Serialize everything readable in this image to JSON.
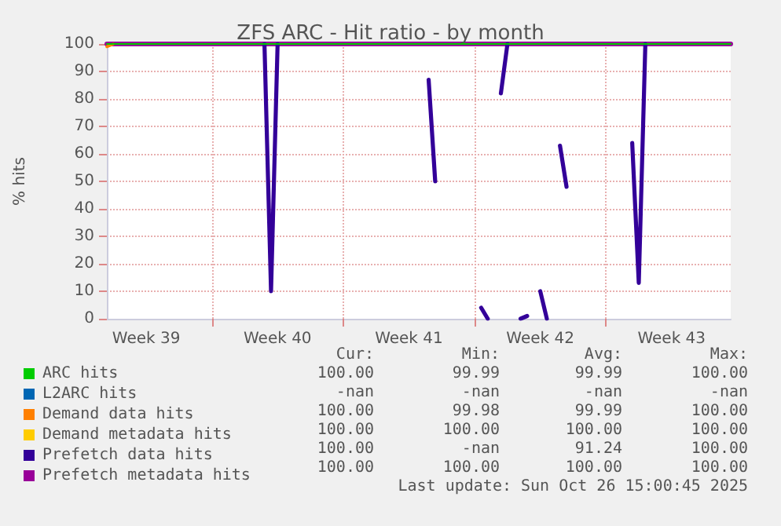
{
  "chart_data": {
    "type": "line",
    "title": "ZFS ARC - Hit ratio - by month",
    "ylabel": "% hits",
    "categories": [
      null,
      null,
      null,
      null,
      null,
      null,
      "Week 39",
      null,
      null,
      null,
      null,
      null,
      null,
      null,
      null,
      null,
      null,
      null,
      null,
      null,
      null,
      null,
      null,
      null,
      null,
      null,
      "Week 40",
      null,
      null,
      null,
      null,
      null,
      null,
      null,
      null,
      null,
      null,
      null,
      null,
      null,
      null,
      null,
      null,
      null,
      null,
      null,
      "Week 41",
      null,
      null,
      null,
      null,
      null,
      null,
      null,
      null,
      null,
      null,
      null,
      null,
      null,
      null,
      null,
      null,
      null,
      null,
      null,
      "Week 42",
      null,
      null,
      null,
      null,
      null,
      null,
      null,
      null,
      null,
      null,
      null,
      null,
      null,
      null,
      null,
      null,
      null,
      null,
      null,
      "Week 43",
      null,
      null,
      null,
      null,
      null,
      null,
      null,
      null,
      null
    ],
    "ylim": [
      0,
      100
    ],
    "yticks": [
      0,
      10,
      20,
      30,
      40,
      50,
      60,
      70,
      80,
      90,
      100
    ],
    "grid": true,
    "legend": "bottom left",
    "line_style": "solid",
    "series": [
      {
        "name": "ARC hits",
        "color": "#00cc00",
        "values": [
          100,
          100,
          100,
          100,
          100,
          100,
          100,
          100,
          100,
          100,
          100,
          100,
          100,
          100,
          100,
          100,
          100,
          100,
          100,
          100,
          100,
          100,
          100,
          100,
          100,
          100,
          100,
          100,
          100,
          100,
          100,
          100,
          100,
          100,
          100,
          100,
          100,
          100,
          100,
          100,
          100,
          100,
          100,
          100,
          100,
          100,
          100,
          100,
          100,
          100,
          100,
          100,
          100,
          100,
          100,
          100,
          100,
          100,
          100,
          100,
          100,
          100,
          100,
          100,
          100,
          100,
          100,
          100,
          100,
          100,
          100,
          100,
          100,
          100,
          100,
          100,
          100,
          100,
          100,
          100,
          100,
          100,
          100,
          100,
          100,
          100,
          100,
          100,
          100,
          100,
          100,
          100,
          100,
          100,
          100,
          100
        ]
      },
      {
        "name": "L2ARC hits",
        "color": "#0066b3",
        "values": [
          null,
          null,
          null,
          null,
          null,
          null,
          null,
          null,
          null,
          null,
          null,
          null,
          null,
          null,
          null,
          null,
          null,
          null,
          null,
          null,
          null,
          null,
          null,
          null,
          null,
          null,
          null,
          null,
          null,
          null,
          null,
          null,
          null,
          null,
          null,
          null,
          null,
          null,
          null,
          null,
          null,
          null,
          null,
          null,
          null,
          null,
          null,
          null,
          null,
          null,
          null,
          null,
          null,
          null,
          null,
          null,
          null,
          null,
          null,
          null,
          null,
          null,
          null,
          null,
          null,
          null,
          null,
          null,
          null,
          null,
          null,
          null,
          null,
          null,
          null,
          null,
          null,
          null,
          null,
          null,
          null,
          null,
          null,
          null,
          null,
          null,
          null,
          null,
          null,
          null,
          null,
          null,
          null,
          null,
          null,
          null
        ]
      },
      {
        "name": "Demand data hits",
        "color": "#ff8000",
        "values": [
          99,
          100,
          null,
          null,
          null,
          null,
          null,
          null,
          null,
          null,
          null,
          null,
          null,
          null,
          null,
          null,
          null,
          null,
          null,
          null,
          null,
          null,
          null,
          null,
          null,
          null,
          null,
          null,
          null,
          null,
          null,
          null,
          null,
          null,
          null,
          null,
          null,
          null,
          null,
          null,
          null,
          null,
          null,
          null,
          null,
          null,
          null,
          null,
          null,
          null,
          null,
          null,
          null,
          null,
          null,
          null,
          null,
          null,
          null,
          null,
          null,
          null,
          null,
          null,
          null,
          null,
          null,
          null,
          null,
          null,
          null,
          null,
          null,
          null,
          null,
          null,
          null,
          null,
          null,
          null,
          null,
          null,
          null,
          null,
          null,
          null,
          null,
          null,
          null,
          null,
          null,
          null,
          null,
          null,
          null,
          null
        ]
      },
      {
        "name": "Demand metadata hits",
        "color": "#ffcc00",
        "values": [
          null,
          null,
          null,
          null,
          null,
          null,
          null,
          null,
          null,
          null,
          null,
          null,
          null,
          null,
          null,
          null,
          null,
          null,
          null,
          null,
          null,
          null,
          null,
          null,
          null,
          null,
          null,
          null,
          null,
          null,
          null,
          null,
          null,
          null,
          null,
          null,
          null,
          null,
          null,
          null,
          null,
          null,
          null,
          null,
          null,
          null,
          null,
          null,
          null,
          null,
          null,
          null,
          null,
          null,
          null,
          null,
          null,
          null,
          null,
          null,
          null,
          null,
          null,
          null,
          null,
          null,
          null,
          null,
          null,
          null,
          null,
          null,
          null,
          null,
          null,
          null,
          null,
          null,
          null,
          null,
          null,
          null,
          null,
          null,
          null,
          null,
          null,
          null,
          null,
          null,
          null,
          null,
          null,
          null,
          null,
          null
        ]
      },
      {
        "name": "Prefetch data hits",
        "color": "#330099",
        "values": [
          null,
          null,
          null,
          null,
          null,
          null,
          null,
          null,
          null,
          null,
          null,
          null,
          null,
          null,
          null,
          null,
          null,
          null,
          null,
          null,
          null,
          null,
          null,
          null,
          100,
          10,
          100,
          null,
          null,
          null,
          null,
          null,
          null,
          null,
          null,
          null,
          null,
          null,
          null,
          null,
          null,
          null,
          null,
          null,
          null,
          null,
          null,
          null,
          null,
          87,
          50,
          null,
          null,
          null,
          null,
          null,
          null,
          4,
          0,
          null,
          82,
          100,
          null,
          0,
          1,
          null,
          10,
          0,
          null,
          63,
          48,
          null,
          null,
          null,
          null,
          null,
          null,
          null,
          null,
          null,
          64,
          13,
          100,
          null,
          null,
          null,
          null,
          null,
          null,
          null,
          null,
          null,
          null,
          null,
          null,
          null
        ]
      },
      {
        "name": "Prefetch metadata hits",
        "color": "#990099",
        "values": [
          100,
          100,
          100,
          100,
          100,
          100,
          100,
          100,
          100,
          100,
          100,
          100,
          100,
          100,
          100,
          100,
          100,
          100,
          100,
          100,
          100,
          100,
          100,
          100,
          100,
          100,
          100,
          100,
          100,
          100,
          100,
          100,
          100,
          100,
          100,
          100,
          100,
          100,
          100,
          100,
          100,
          100,
          100,
          100,
          100,
          100,
          100,
          100,
          100,
          100,
          100,
          100,
          100,
          100,
          100,
          100,
          100,
          100,
          100,
          100,
          100,
          100,
          100,
          100,
          100,
          100,
          100,
          100,
          100,
          100,
          100,
          100,
          100,
          100,
          100,
          100,
          100,
          100,
          100,
          100,
          100,
          100,
          100,
          100,
          100,
          100,
          100,
          100,
          100,
          100,
          100,
          100,
          100,
          100,
          100,
          100
        ]
      }
    ],
    "annotations": [
      "Cur:",
      "Min:",
      "Avg:",
      "Max:",
      "100.00",
      "99.99",
      "99.99",
      "100.00",
      "-nan",
      "-nan",
      "-nan",
      "-nan",
      "100.00",
      "99.98",
      "99.99",
      "100.00",
      "100.00",
      "100.00",
      "100.00",
      "100.00",
      "100.00",
      "-nan",
      "91.24",
      "100.00",
      "100.00",
      "100.00",
      "100.00",
      "100.00",
      "Last update: Sun Oct 26 15:00:45 2025"
    ]
  }
}
